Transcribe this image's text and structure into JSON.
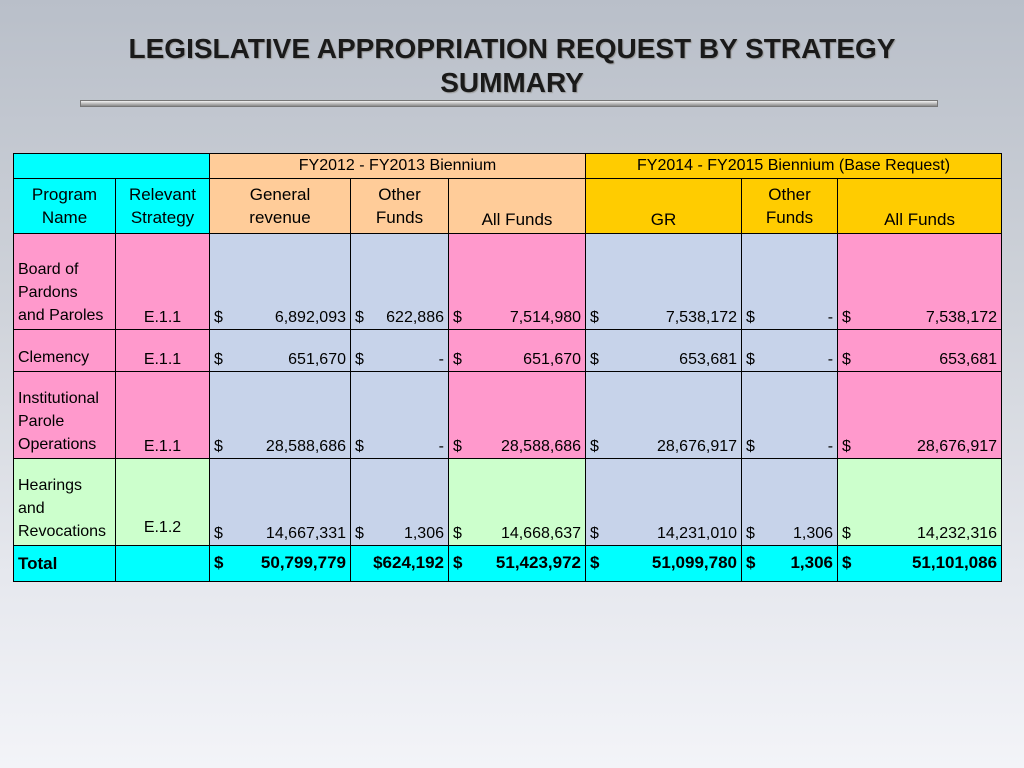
{
  "title_line1": "LEGISLATIVE APPROPRIATION REQUEST BY STRATEGY",
  "title_line2": "SUMMARY",
  "groups": {
    "fy1213": "FY2012 - FY2013 Biennium",
    "fy1415": "FY2014 - FY2015 Biennium (Base Request)"
  },
  "headers": {
    "program_name_1": "Program",
    "program_name_2": "Name",
    "strategy_1": "Relevant",
    "strategy_2": "Strategy",
    "gr_a_1": "General",
    "gr_a_2": "revenue",
    "other_a_1": "Other",
    "other_a_2": "Funds",
    "all_a": "All Funds",
    "gr_b": "GR",
    "other_b_1": "Other",
    "other_b_2": "Funds",
    "all_b": "All Funds"
  },
  "dollar": "$",
  "rows": [
    {
      "name_lines": [
        "Board of",
        "Pardons",
        "and Paroles"
      ],
      "strategy": "E.1.1",
      "gr_a": "6,892,093",
      "other_a": "622,886",
      "all_a": "7,514,980",
      "gr_b": "7,538,172",
      "other_b": "-",
      "all_b": "7,538,172"
    },
    {
      "name_lines": [
        "Clemency"
      ],
      "strategy": "E.1.1",
      "gr_a": "651,670",
      "other_a": "-",
      "all_a": "651,670",
      "gr_b": "653,681",
      "other_b": "-",
      "all_b": "653,681"
    },
    {
      "name_lines": [
        "Institutional",
        "Parole",
        "Operations"
      ],
      "strategy": "E.1.1",
      "gr_a": "28,588,686",
      "other_a": "-",
      "all_a": "28,588,686",
      "gr_b": "28,676,917",
      "other_b": "-",
      "all_b": "28,676,917"
    },
    {
      "name_lines": [
        "Hearings",
        "and",
        "Revocations"
      ],
      "strategy": "E.1.2",
      "gr_a": "14,667,331",
      "other_a": "1,306",
      "all_a": "14,668,637",
      "gr_b": "14,231,010",
      "other_b": "1,306",
      "all_b": "14,232,316"
    }
  ],
  "total": {
    "label": "Total",
    "gr_a": "50,799,779",
    "other_a": "$624,192",
    "all_a": "51,423,972",
    "gr_b": "51,099,780",
    "other_b": "1,306",
    "all_b": "51,101,086"
  }
}
